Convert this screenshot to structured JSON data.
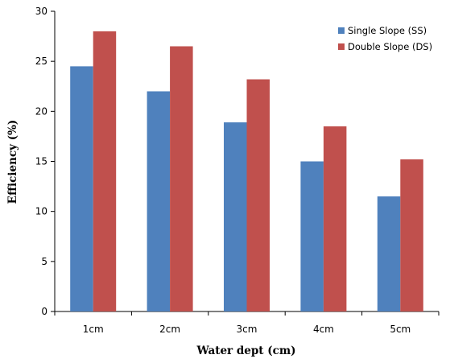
{
  "chart_data": {
    "type": "bar",
    "title": "",
    "xlabel": "Water dept (cm)",
    "ylabel": "Efficiency (%)",
    "categories": [
      "1cm",
      "2cm",
      "3cm",
      "4cm",
      "5cm"
    ],
    "series": [
      {
        "name": "Single Slope (SS)",
        "color": "#4F81BD",
        "values": [
          24.5,
          22.0,
          18.9,
          15.0,
          11.5
        ]
      },
      {
        "name": "Double Slope (DS)",
        "color": "#C0504D",
        "values": [
          28.0,
          26.5,
          23.2,
          18.5,
          15.2
        ]
      }
    ],
    "ylim": [
      0,
      30
    ],
    "yticks": [
      "0",
      "5",
      "10",
      "15",
      "20",
      "25",
      "30"
    ],
    "grid": false,
    "legend_position": "top-right"
  }
}
